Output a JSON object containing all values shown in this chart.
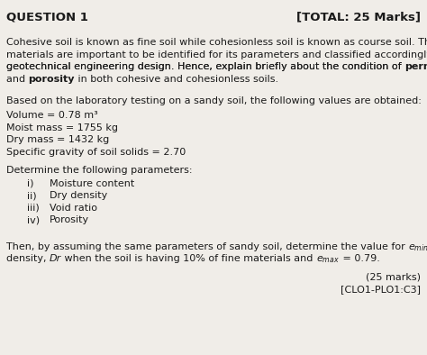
{
  "bg_color": "#f0ede8",
  "text_color": "#1a1a1a",
  "heading_left": "QUESTION 1",
  "heading_right": "[TOTAL: 25 Marks]",
  "para2": "Based on the laboratory testing on a sandy soil, the following values are obtained:",
  "data_lines": [
    "Volume = 0.78 m³",
    "Moist mass = 1755 kg",
    "Dry mass = 1432 kg",
    "Specific gravity of soil solids = 2.70"
  ],
  "para3": "Determine the following parameters:",
  "marks_line": "(25 marks)",
  "clo_line": "[CLO1-PLO1:C3]",
  "figsize": [
    4.74,
    3.94
  ],
  "dpi": 100
}
